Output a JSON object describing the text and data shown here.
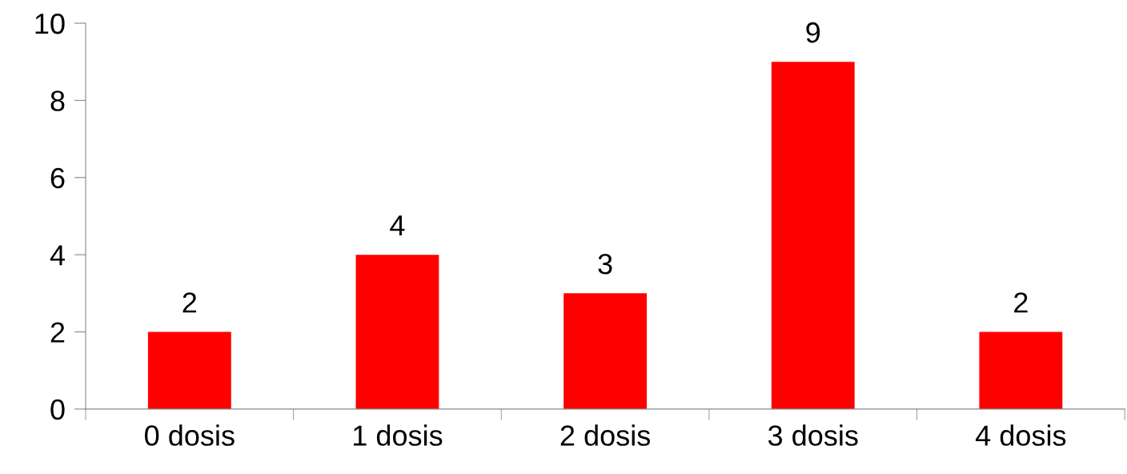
{
  "chart_data": {
    "type": "bar",
    "categories": [
      "0 dosis",
      "1 dosis",
      "2 dosis",
      "3 dosis",
      "4 dosis"
    ],
    "values": [
      2,
      4,
      3,
      9,
      2
    ],
    "color": "#ff0000",
    "ylim": [
      0,
      10
    ],
    "yticks": [
      0,
      2,
      4,
      6,
      8,
      10
    ],
    "data_labels": true,
    "grid": false,
    "legend": false
  }
}
